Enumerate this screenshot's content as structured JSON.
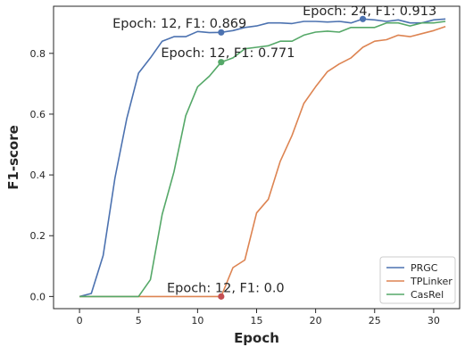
{
  "chart_data": {
    "type": "line",
    "xlabel": "Epoch",
    "ylabel": "F1-score",
    "xlim": [
      -2.2,
      32.2
    ],
    "ylim": [
      -0.04,
      0.955
    ],
    "xticks": [
      0,
      5,
      10,
      15,
      20,
      25,
      30
    ],
    "yticks": [
      0.0,
      0.2,
      0.4,
      0.6,
      0.8
    ],
    "ytick_labels": [
      "0.0",
      "0.2",
      "0.4",
      "0.6",
      "0.8"
    ],
    "grid": false,
    "legend_position": "lower-right",
    "series": [
      {
        "name": "PRGC",
        "color": "#4c72b0",
        "x": [
          0,
          1,
          2,
          3,
          4,
          5,
          6,
          7,
          8,
          9,
          10,
          11,
          12,
          13,
          14,
          15,
          16,
          17,
          18,
          19,
          20,
          21,
          22,
          23,
          24,
          25,
          26,
          27,
          28,
          29,
          30,
          31
        ],
        "values": [
          0.0,
          0.01,
          0.135,
          0.39,
          0.585,
          0.735,
          0.785,
          0.84,
          0.855,
          0.855,
          0.872,
          0.868,
          0.869,
          0.875,
          0.885,
          0.89,
          0.9,
          0.9,
          0.898,
          0.905,
          0.905,
          0.903,
          0.905,
          0.9,
          0.913,
          0.91,
          0.905,
          0.91,
          0.9,
          0.9,
          0.91,
          0.913
        ]
      },
      {
        "name": "TPLinker",
        "color": "#dd8452",
        "x": [
          0,
          1,
          2,
          3,
          4,
          5,
          6,
          7,
          8,
          9,
          10,
          11,
          12,
          13,
          14,
          15,
          16,
          17,
          18,
          19,
          20,
          21,
          22,
          23,
          24,
          25,
          26,
          27,
          28,
          29,
          30,
          31
        ],
        "values": [
          0.0,
          0.0,
          0.0,
          0.0,
          0.0,
          0.0,
          0.0,
          0.0,
          0.0,
          0.0,
          0.0,
          0.0,
          0.0,
          0.095,
          0.12,
          0.275,
          0.32,
          0.445,
          0.53,
          0.635,
          0.69,
          0.74,
          0.765,
          0.785,
          0.82,
          0.84,
          0.845,
          0.86,
          0.855,
          0.865,
          0.875,
          0.888
        ]
      },
      {
        "name": "CasRel",
        "color": "#55a868",
        "x": [
          0,
          1,
          2,
          3,
          4,
          5,
          6,
          7,
          8,
          9,
          10,
          11,
          12,
          13,
          14,
          15,
          16,
          17,
          18,
          19,
          20,
          21,
          22,
          23,
          24,
          25,
          26,
          27,
          28,
          29,
          30,
          31
        ],
        "values": [
          0.0,
          0.0,
          0.0,
          0.0,
          0.0,
          0.0,
          0.055,
          0.27,
          0.41,
          0.595,
          0.69,
          0.725,
          0.771,
          0.785,
          0.815,
          0.82,
          0.825,
          0.84,
          0.84,
          0.86,
          0.87,
          0.873,
          0.87,
          0.885,
          0.885,
          0.885,
          0.9,
          0.9,
          0.89,
          0.9,
          0.9,
          0.905
        ]
      }
    ],
    "highlight_points": [
      {
        "series": "PRGC",
        "x": 12,
        "y": 0.869,
        "color": "#4c72b0"
      },
      {
        "series": "PRGC",
        "x": 24,
        "y": 0.913,
        "color": "#4c72b0"
      },
      {
        "series": "CasRel",
        "x": 12,
        "y": 0.771,
        "color": "#55a868"
      },
      {
        "series": "TPLinker",
        "x": 12,
        "y": 0.0,
        "color": "#c44e52"
      }
    ],
    "annotations": [
      {
        "text": "Epoch: 12, F1: 0.869",
        "x": 2.8,
        "y": 0.885
      },
      {
        "text": "Epoch: 24, F1: 0.913",
        "x": 18.9,
        "y": 0.925
      },
      {
        "text": "Epoch: 12, F1: 0.771",
        "x": 6.9,
        "y": 0.788
      },
      {
        "text": "Epoch: 12, F1: 0.0",
        "x": 7.4,
        "y": 0.015
      }
    ]
  }
}
